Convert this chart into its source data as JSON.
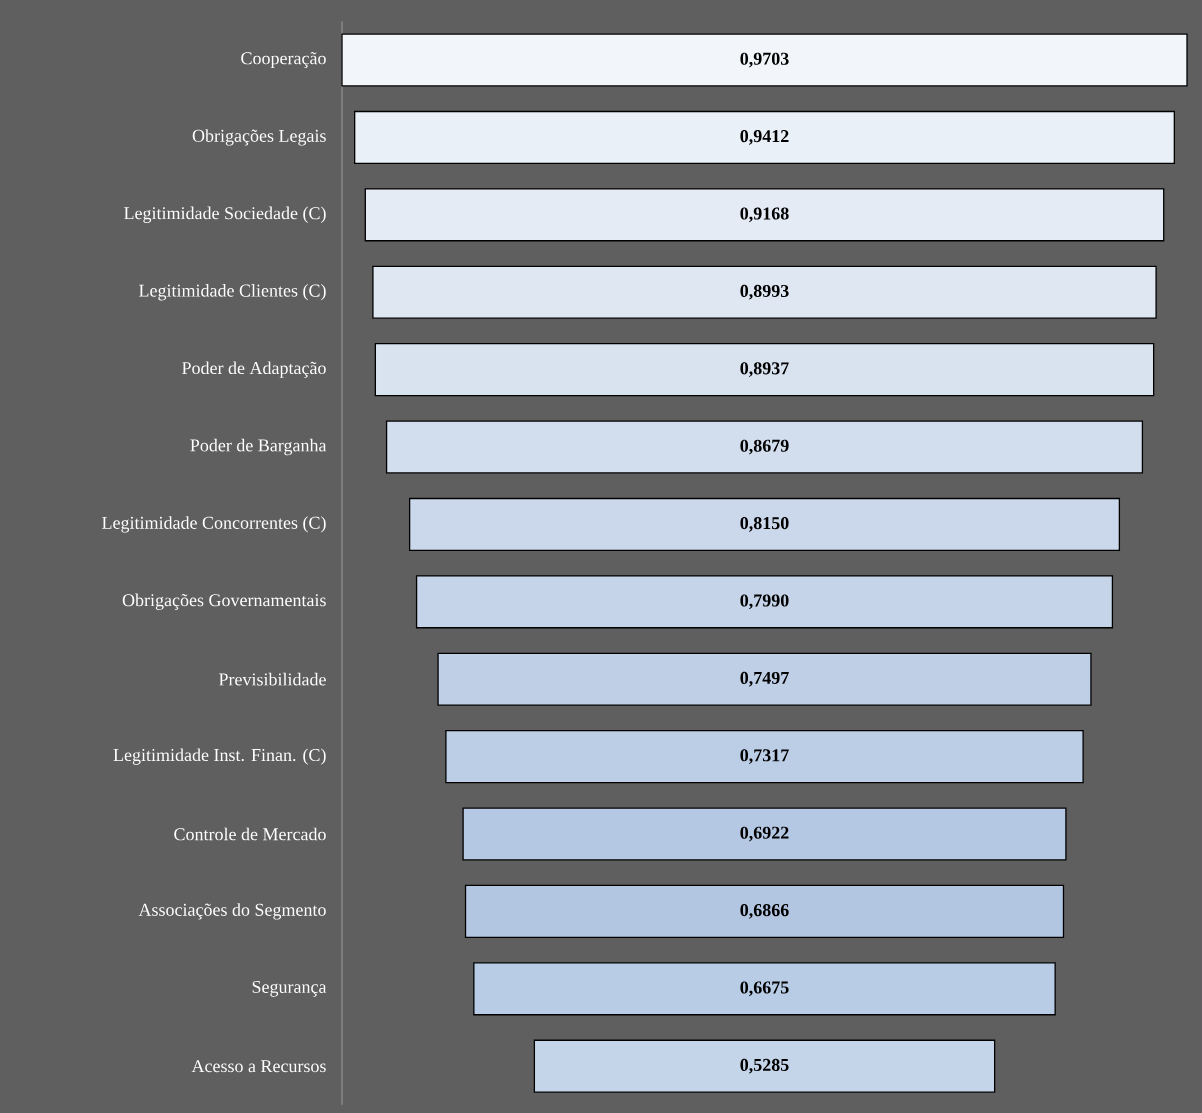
{
  "chart_data": {
    "type": "other",
    "categories": [
      "Cooperação",
      "Obrigações Legais",
      "Legitimidade Sociedade (C)",
      "Legitimidade Clientes (C)",
      "Poder de Adaptação",
      "Poder de Barganha",
      "Legitimidade Concorrentes (C)",
      "Obrigações Governamentais",
      "Previsibilidade",
      "Legitimidade Inst. Finan. (C)",
      "Controle de Mercado",
      "Associações do Segmento",
      "Segurança",
      "Acesso a Recursos"
    ],
    "values": [
      0.9703,
      0.9412,
      0.9168,
      0.8993,
      0.8937,
      0.8679,
      0.815,
      0.799,
      0.7497,
      0.7317,
      0.6922,
      0.6866,
      0.6675,
      0.5285
    ],
    "value_labels": [
      "0,9703",
      "0,9412",
      "0,9168",
      "0,8993",
      "0,8937",
      "0,8679",
      "0,8150",
      "0,7990",
      "0,7497",
      "0,7317",
      "0,6922",
      "0,6866",
      "0,6675",
      "0,5285"
    ],
    "colors": [
      "#f2f6fb",
      "#eaf0f8",
      "#e4ebf5",
      "#dee7f2",
      "#d9e3f0",
      "#d2ddee",
      "#cbd8eb",
      "#c6d4e9",
      "#bfcfe6",
      "#bccde6",
      "#b5c8e3",
      "#b2c6e2",
      "#b8cce5",
      "#c5d5e9"
    ]
  }
}
